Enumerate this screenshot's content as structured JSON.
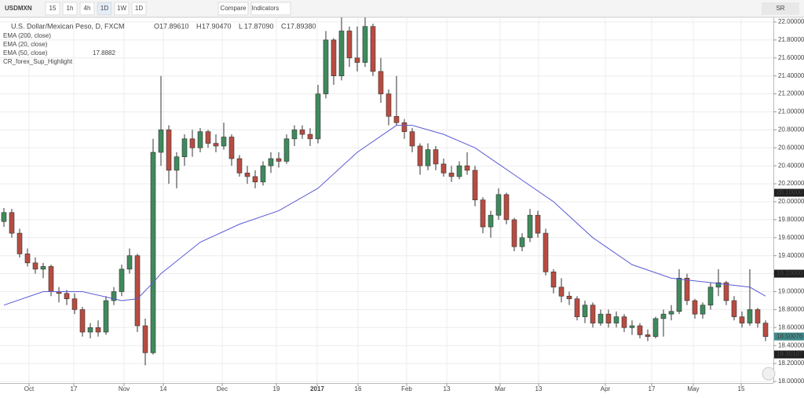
{
  "toolbar": {
    "symbol": "USDMXN",
    "intervals": [
      "15",
      "1h",
      "4h",
      "1D",
      "1W",
      "1D"
    ],
    "compare": "Compare",
    "indicators": "Indicators",
    "right": "SR"
  },
  "chart_data": {
    "type": "candlestick",
    "title": "U.S. Dollar/Mexican Peso, D, FXCM",
    "ohlc": [
      {
        "key": "O",
        "value": "17.89610"
      },
      {
        "key": "H",
        "value": "17.90470"
      },
      {
        "key": "L",
        "value": "17.87090"
      },
      {
        "key": "C",
        "value": "17.89380"
      }
    ],
    "studies": [
      {
        "name": "EMA (200, close)"
      },
      {
        "name": "EMA (20, close)"
      },
      {
        "name": "EMA (50, close)",
        "value": "17.8882"
      },
      {
        "name": "CR_forex_Sup_Highlight"
      }
    ],
    "up_color": "#3f8a5c",
    "down_color": "#b84c41",
    "candles": [
      [
        19.78,
        19.93,
        19.72,
        19.88
      ],
      [
        19.88,
        19.92,
        19.6,
        19.65
      ],
      [
        19.65,
        19.7,
        19.38,
        19.42
      ],
      [
        19.42,
        19.48,
        19.28,
        19.32
      ],
      [
        19.32,
        19.38,
        19.2,
        19.25
      ],
      [
        19.25,
        19.32,
        19.15,
        19.28
      ],
      [
        19.28,
        19.3,
        18.95,
        19
      ],
      [
        19,
        19.05,
        18.88,
        18.98
      ],
      [
        18.98,
        19.02,
        18.85,
        18.92
      ],
      [
        18.92,
        18.98,
        18.75,
        18.8
      ],
      [
        18.8,
        18.83,
        18.5,
        18.55
      ],
      [
        18.55,
        18.65,
        18.48,
        18.6
      ],
      [
        18.6,
        18.68,
        18.5,
        18.55
      ],
      [
        18.55,
        18.95,
        18.52,
        18.9
      ],
      [
        18.9,
        19.05,
        18.85,
        19
      ],
      [
        19,
        19.3,
        18.95,
        19.25
      ],
      [
        19.25,
        19.48,
        19.2,
        19.4
      ],
      [
        19.4,
        19.42,
        18.55,
        18.62
      ],
      [
        18.62,
        18.7,
        18.18,
        18.32
      ],
      [
        18.32,
        20.7,
        18.3,
        20.55
      ],
      [
        20.55,
        21.4,
        20.4,
        20.8
      ],
      [
        20.8,
        20.85,
        20.2,
        20.35
      ],
      [
        20.35,
        20.55,
        20.15,
        20.5
      ],
      [
        20.5,
        20.75,
        20.4,
        20.7
      ],
      [
        20.7,
        20.8,
        20.5,
        20.6
      ],
      [
        20.6,
        20.82,
        20.55,
        20.78
      ],
      [
        20.78,
        20.8,
        20.6,
        20.65
      ],
      [
        20.65,
        20.75,
        20.55,
        20.62
      ],
      [
        20.62,
        20.88,
        20.58,
        20.72
      ],
      [
        20.72,
        20.75,
        20.4,
        20.48
      ],
      [
        20.48,
        20.52,
        20.28,
        20.32
      ],
      [
        20.32,
        20.4,
        20.2,
        20.28
      ],
      [
        20.28,
        20.35,
        20.15,
        20.22
      ],
      [
        20.22,
        20.45,
        20.18,
        20.4
      ],
      [
        20.4,
        20.55,
        20.32,
        20.48
      ],
      [
        20.48,
        20.55,
        20.38,
        20.45
      ],
      [
        20.45,
        20.75,
        20.42,
        20.7
      ],
      [
        20.7,
        20.85,
        20.62,
        20.8
      ],
      [
        20.8,
        20.85,
        20.7,
        20.75
      ],
      [
        20.75,
        20.82,
        20.62,
        20.7
      ],
      [
        20.7,
        21.3,
        20.65,
        21.2
      ],
      [
        21.2,
        21.9,
        21.15,
        21.8
      ],
      [
        21.8,
        21.82,
        21.3,
        21.4
      ],
      [
        21.4,
        22.05,
        21.35,
        21.9
      ],
      [
        21.9,
        21.95,
        21.5,
        21.6
      ],
      [
        21.6,
        21.95,
        21.45,
        21.55
      ],
      [
        21.55,
        22.05,
        21.5,
        21.95
      ],
      [
        21.95,
        21.98,
        21.4,
        21.45
      ],
      [
        21.45,
        21.6,
        21.1,
        21.2
      ],
      [
        21.2,
        21.25,
        20.85,
        20.95
      ],
      [
        20.95,
        21.4,
        20.85,
        20.88
      ],
      [
        20.88,
        20.92,
        20.7,
        20.78
      ],
      [
        20.78,
        20.82,
        20.55,
        20.62
      ],
      [
        20.62,
        20.65,
        20.3,
        20.4
      ],
      [
        20.4,
        20.65,
        20.35,
        20.58
      ],
      [
        20.58,
        20.62,
        20.35,
        20.42
      ],
      [
        20.42,
        20.48,
        20.28,
        20.32
      ],
      [
        20.32,
        20.4,
        20.22,
        20.28
      ],
      [
        20.28,
        20.45,
        20.25,
        20.4
      ],
      [
        20.4,
        20.55,
        20.3,
        20.35
      ],
      [
        20.35,
        20.4,
        19.95,
        20.02
      ],
      [
        20.02,
        20.05,
        19.65,
        19.72
      ],
      [
        19.72,
        19.9,
        19.6,
        19.85
      ],
      [
        19.85,
        20.15,
        19.8,
        20.08
      ],
      [
        20.08,
        20.1,
        19.75,
        19.8
      ],
      [
        19.8,
        19.82,
        19.45,
        19.5
      ],
      [
        19.5,
        19.65,
        19.45,
        19.6
      ],
      [
        19.6,
        19.92,
        19.55,
        19.85
      ],
      [
        19.85,
        19.9,
        19.6,
        19.65
      ],
      [
        19.65,
        19.7,
        19.18,
        19.22
      ],
      [
        19.22,
        19.25,
        18.98,
        19.05
      ],
      [
        19.05,
        19.15,
        18.88,
        18.95
      ],
      [
        18.95,
        19,
        18.85,
        18.92
      ],
      [
        18.92,
        18.95,
        18.68,
        18.72
      ],
      [
        18.72,
        18.9,
        18.65,
        18.85
      ],
      [
        18.85,
        18.88,
        18.6,
        18.65
      ],
      [
        18.65,
        18.8,
        18.62,
        18.75
      ],
      [
        18.75,
        18.8,
        18.6,
        18.65
      ],
      [
        18.65,
        18.78,
        18.6,
        18.72
      ],
      [
        18.72,
        18.75,
        18.55,
        18.6
      ],
      [
        18.6,
        18.68,
        18.52,
        18.62
      ],
      [
        18.62,
        18.65,
        18.48,
        18.52
      ],
      [
        18.52,
        18.58,
        18.45,
        18.5
      ],
      [
        18.5,
        18.72,
        18.48,
        18.7
      ],
      [
        18.7,
        18.8,
        18.5,
        18.75
      ],
      [
        18.75,
        18.85,
        18.68,
        18.78
      ],
      [
        18.78,
        19.25,
        18.75,
        19.15
      ],
      [
        19.15,
        19.2,
        18.85,
        18.9
      ],
      [
        18.9,
        18.92,
        18.7,
        18.75
      ],
      [
        18.75,
        18.88,
        18.7,
        18.85
      ],
      [
        18.85,
        19.1,
        18.8,
        19.05
      ],
      [
        19.05,
        19.25,
        18.95,
        19.1
      ],
      [
        19.1,
        19.12,
        18.85,
        18.9
      ],
      [
        18.9,
        18.95,
        18.68,
        18.72
      ],
      [
        18.72,
        18.78,
        18.6,
        18.65
      ],
      [
        18.65,
        19.25,
        18.62,
        18.8
      ],
      [
        18.8,
        18.82,
        18.6,
        18.65
      ],
      [
        18.65,
        18.68,
        18.45,
        18.5
      ]
    ],
    "ema": {
      "name": "EMA (50, close)",
      "color": "#5b5bd6",
      "x": [
        0,
        5,
        10,
        15,
        17,
        19,
        20,
        25,
        30,
        35,
        40,
        45,
        50,
        52,
        56,
        60,
        65,
        70,
        75,
        80,
        85,
        90,
        95,
        97
      ],
      "values": [
        18.85,
        19,
        19,
        18.9,
        18.92,
        19.1,
        19.2,
        19.55,
        19.75,
        19.9,
        20.15,
        20.55,
        20.85,
        20.85,
        20.75,
        20.6,
        20.3,
        20,
        19.6,
        19.3,
        19.15,
        19.1,
        19.05,
        18.95
      ]
    },
    "ylim": [
      17.92,
      22.1
    ],
    "yticks": [
      {
        "value": 22,
        "label": "22.00000"
      },
      {
        "value": 21.8,
        "label": "21.80000"
      },
      {
        "value": 21.6,
        "label": "21.60000"
      },
      {
        "value": 21.4,
        "label": "21.40000"
      },
      {
        "value": 21.2,
        "label": "21.20000"
      },
      {
        "value": 21,
        "label": "21.00000"
      },
      {
        "value": 20.8,
        "label": "20.80000"
      },
      {
        "value": 20.6,
        "label": "20.60000"
      },
      {
        "value": 20.4,
        "label": "20.40000"
      },
      {
        "value": 20.2,
        "label": "20.20000"
      },
      {
        "value": 20,
        "label": "20.00000"
      },
      {
        "value": 19.8,
        "label": "19.80000"
      },
      {
        "value": 19.6,
        "label": "19.60000"
      },
      {
        "value": 19.4,
        "label": "19.40000"
      },
      {
        "value": 19.2,
        "label": "19.20000"
      },
      {
        "value": 19,
        "label": "19.00000"
      },
      {
        "value": 18.8,
        "label": "18.80000"
      },
      {
        "value": 18.6,
        "label": "18.60000"
      },
      {
        "value": 18.4,
        "label": "18.40000"
      },
      {
        "value": 18.2,
        "label": "18.20000"
      },
      {
        "value": 18,
        "label": "18.00000"
      }
    ],
    "price_markers": [
      {
        "value": 20.1,
        "label": "20.10000",
        "color": "#1f1f1f"
      },
      {
        "value": 19.2,
        "label": "19.20000",
        "color": "#1f1f1f"
      },
      {
        "value": 18.50076,
        "label": "18.50076",
        "color": "#3f8a8a"
      },
      {
        "value": 18.30107,
        "label": "18.30107",
        "color": "#1f1f1f"
      }
    ],
    "xticks": [
      {
        "value": 3.2,
        "label": "Oct"
      },
      {
        "value": 8.9,
        "label": "17"
      },
      {
        "value": 15.3,
        "label": "Nov"
      },
      {
        "value": 20.3,
        "label": "14"
      },
      {
        "value": 27.8,
        "label": "Dec"
      },
      {
        "value": 34.7,
        "label": "19"
      },
      {
        "value": 39.9,
        "label": "2017"
      },
      {
        "value": 45.1,
        "label": "16"
      },
      {
        "value": 51.3,
        "label": "Feb"
      },
      {
        "value": 56.4,
        "label": "13"
      },
      {
        "value": 63.2,
        "label": "Mar"
      },
      {
        "value": 68.1,
        "label": "13"
      },
      {
        "value": 76.6,
        "label": "Apr"
      },
      {
        "value": 82.5,
        "label": "17"
      },
      {
        "value": 87.8,
        "label": "May"
      },
      {
        "value": 93.9,
        "label": "15"
      }
    ],
    "grid": true
  }
}
